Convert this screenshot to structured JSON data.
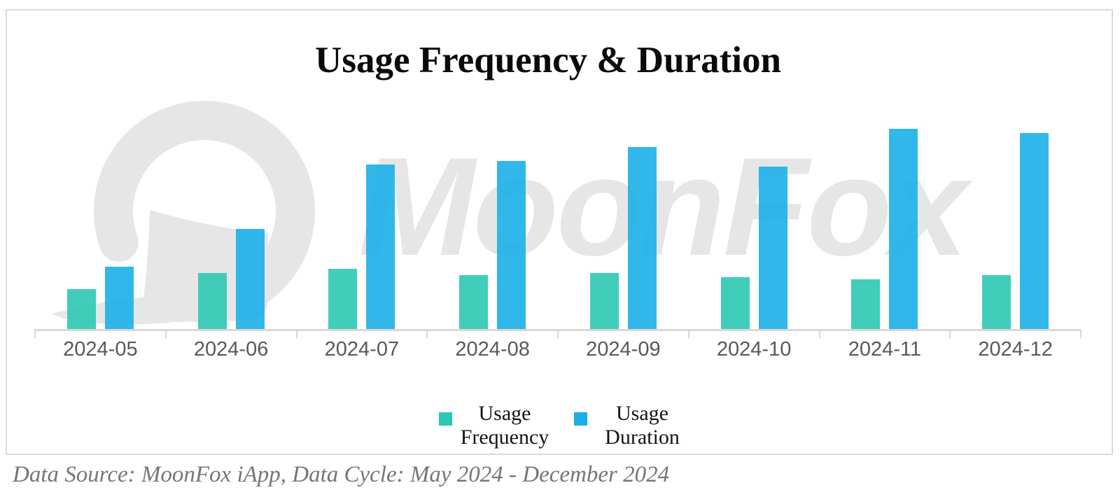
{
  "title": "Usage Frequency & Duration",
  "watermark": {
    "text": "MoonFox",
    "logo_icon": "moonfox-crescent-logo"
  },
  "footer": {
    "text": "Data Source: MoonFox iApp, Data Cycle: May 2024 - December 2024"
  },
  "legend": [
    {
      "line1": "Usage",
      "line2": "Frequency",
      "series": "Usage Frequency"
    },
    {
      "line1": "Usage",
      "line2": "Duration",
      "series": "Usage Duration"
    }
  ],
  "colors": {
    "frequency": "#2bc8b2",
    "duration": "#1bafe8",
    "watermark": "#e6e6e6",
    "axis": "#d8d8d8",
    "axis_label": "#595959",
    "footer_text": "#767676",
    "title_text": "#0a0a0a"
  },
  "chart_data": {
    "type": "bar",
    "title": "Usage Frequency & Duration",
    "categories": [
      "2024-05",
      "2024-06",
      "2024-07",
      "2024-08",
      "2024-09",
      "2024-10",
      "2024-11",
      "2024-12"
    ],
    "series": [
      {
        "name": "Usage Frequency",
        "color": "#2bc8b2",
        "values": [
          20,
          28,
          30,
          27,
          28,
          26,
          25,
          27
        ]
      },
      {
        "name": "Usage Duration",
        "color": "#1bafe8",
        "values": [
          31,
          50,
          82,
          84,
          91,
          81,
          100,
          98
        ]
      }
    ],
    "value_axis_visible": false,
    "values_note": "relative units; no value axis is shown in the image, values normalized to 100 = tallest bar (2024-11 Usage Duration)",
    "xlabel": "",
    "ylabel": "",
    "ylim": [
      0,
      100
    ],
    "grid": false,
    "legend_position": "bottom"
  }
}
